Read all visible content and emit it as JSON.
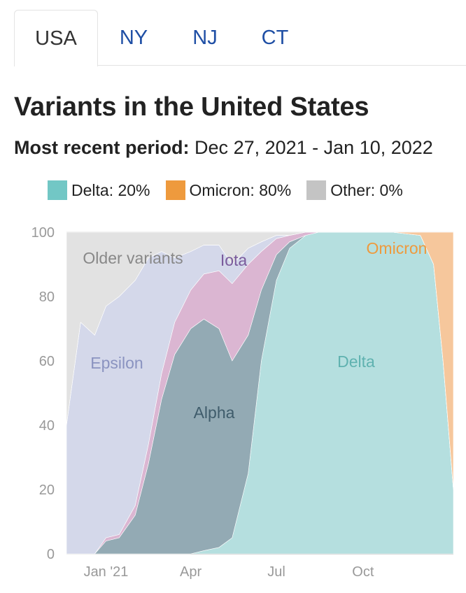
{
  "tabs": [
    {
      "label": "USA",
      "active": true
    },
    {
      "label": "NY",
      "active": false
    },
    {
      "label": "NJ",
      "active": false
    },
    {
      "label": "CT",
      "active": false
    }
  ],
  "title": "Variants in the United States",
  "subtitle": {
    "label": "Most recent period:",
    "value": "Dec 27, 2021 - Jan 10, 2022"
  },
  "legend": [
    {
      "label": "Delta: 20%",
      "color": "#72c7c5"
    },
    {
      "label": "Omicron: 80%",
      "color": "#ee9a3d"
    },
    {
      "label": "Other: 0%",
      "color": "#c4c4c4"
    }
  ],
  "chart_data": {
    "type": "area",
    "stacked": true,
    "x": [
      "2020-11-20",
      "2020-12-05",
      "2020-12-20",
      "2021-01-01",
      "2021-01-15",
      "2021-02-01",
      "2021-02-15",
      "2021-03-01",
      "2021-03-15",
      "2021-04-01",
      "2021-04-15",
      "2021-05-01",
      "2021-05-15",
      "2021-06-01",
      "2021-06-15",
      "2021-07-01",
      "2021-07-15",
      "2021-08-01",
      "2021-08-15",
      "2021-09-01",
      "2021-10-01",
      "2021-11-01",
      "2021-12-01",
      "2021-12-15",
      "2021-12-25",
      "2022-01-05"
    ],
    "xticks": [
      "Jan '21",
      "Apr",
      "Jul",
      "Oct"
    ],
    "xtick_dates": [
      "2021-01-01",
      "2021-04-01",
      "2021-07-01",
      "2021-10-01"
    ],
    "ylim": [
      0,
      100
    ],
    "yticks": [
      0,
      20,
      40,
      60,
      80,
      100
    ],
    "series": [
      {
        "name": "Delta",
        "color": "#b5dfdf",
        "values": [
          0,
          0,
          0,
          0,
          0,
          0,
          0,
          0,
          0,
          0,
          1,
          2,
          5,
          25,
          60,
          85,
          95,
          99,
          100,
          100,
          100,
          100,
          99,
          90,
          60,
          20
        ]
      },
      {
        "name": "Alpha",
        "color": "#93aab4",
        "values": [
          0,
          0,
          0,
          4,
          5,
          12,
          28,
          48,
          62,
          70,
          72,
          68,
          55,
          43,
          22,
          8,
          2,
          0,
          0,
          0,
          0,
          0,
          0,
          0,
          0,
          0
        ]
      },
      {
        "name": "Iota",
        "color": "#dbb6d2",
        "values": [
          0,
          0,
          0,
          1,
          1,
          3,
          6,
          8,
          10,
          12,
          14,
          18,
          24,
          22,
          12,
          5,
          2,
          1,
          0,
          0,
          0,
          0,
          0,
          0,
          0,
          0
        ]
      },
      {
        "name": "Epsilon",
        "color": "#d4d8ea",
        "values": [
          40,
          72,
          68,
          72,
          74,
          70,
          58,
          38,
          20,
          12,
          9,
          8,
          6,
          5,
          3,
          1,
          0,
          0,
          0,
          0,
          0,
          0,
          0,
          0,
          0,
          0
        ]
      },
      {
        "name": "Omicron",
        "color": "#f6c79c",
        "values": [
          0,
          0,
          0,
          0,
          0,
          0,
          0,
          0,
          0,
          0,
          0,
          0,
          0,
          0,
          0,
          0,
          0,
          0,
          0,
          0,
          0,
          0,
          1,
          10,
          40,
          80
        ]
      },
      {
        "name": "Older variants",
        "color": "#e2e2e2",
        "values": [
          60,
          28,
          32,
          23,
          20,
          15,
          8,
          6,
          8,
          6,
          4,
          4,
          10,
          5,
          3,
          1,
          1,
          0,
          0,
          0,
          0,
          0,
          0,
          0,
          0,
          0
        ]
      }
    ],
    "labels": [
      "Older variants",
      "Epsilon",
      "Iota",
      "Alpha",
      "Delta",
      "Omicron"
    ],
    "label_colors": [
      "#888888",
      "#8a93c0",
      "#7a5b9c",
      "#3f5c6b",
      "#5fb2b0",
      "#ee9a3d"
    ]
  }
}
